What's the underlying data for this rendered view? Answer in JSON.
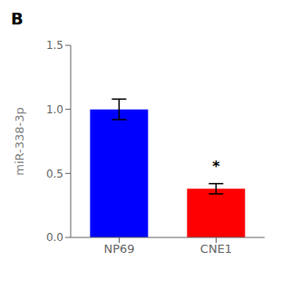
{
  "chart_data": {
    "type": "bar",
    "title": "B",
    "categories": [
      "NP69",
      "CNE1"
    ],
    "values": [
      1.0,
      0.38
    ],
    "errors": [
      0.08,
      0.04
    ],
    "colors": [
      "#0000FF",
      "#FF0000"
    ],
    "ylabel": "miR-338-3p",
    "ylim": [
      0,
      1.5
    ],
    "yticks": [
      {
        "value": 0.0,
        "label": "0.0"
      },
      0.5,
      {
        "value": 1.0,
        "label": "1.0"
      },
      1.5
    ],
    "annotations": [
      {
        "text": "*",
        "x": "CNE1",
        "y": 0.48
      }
    ],
    "grid": false
  }
}
